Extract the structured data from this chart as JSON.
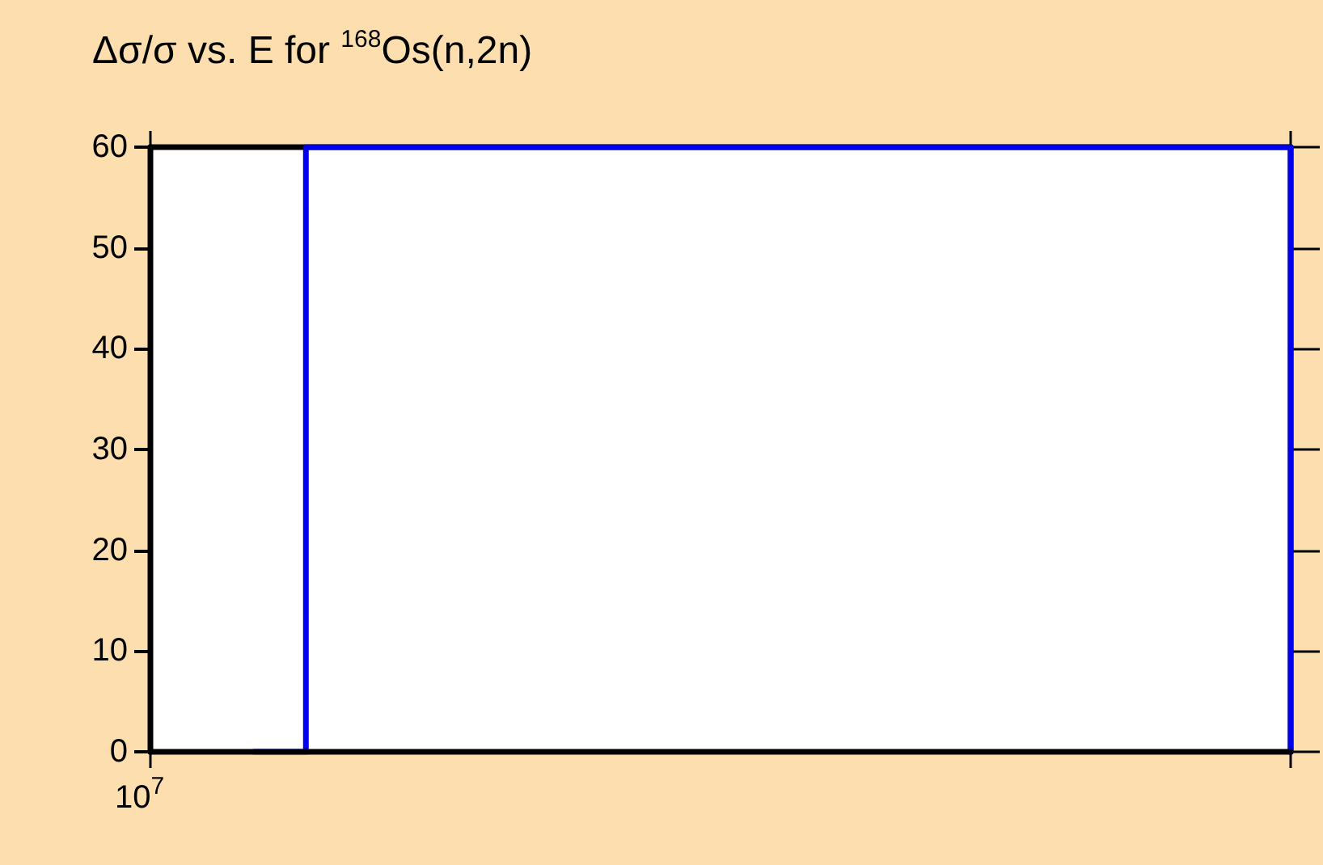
{
  "chart_data": {
    "type": "step",
    "title": "Δσ/σ vs. E for $^{168}$Os(n,2n)",
    "categories": [
      null,
      null,
      null,
      null,
      null,
      null,
      null,
      null,
      null,
      null,
      null,
      null,
      null,
      null,
      null,
      null,
      null,
      null,
      null,
      null,
      null,
      null,
      null
    ],
    "series": [
      {
        "color": "#0000ee",
        "values": [
          null,
          null,
          0,
          60,
          60,
          60,
          60,
          60,
          60,
          60,
          60,
          60,
          60,
          60,
          60,
          60,
          60,
          60,
          60,
          60,
          60,
          60,
          0
        ]
      }
    ],
    "annotations": [
      "10$^{7}$"
    ],
    "ylim": [
      0,
      60
    ],
    "yticks": [
      0,
      10,
      20,
      30,
      40,
      50,
      60
    ],
    "grid": false,
    "marker": "none",
    "line_style": "solid"
  }
}
